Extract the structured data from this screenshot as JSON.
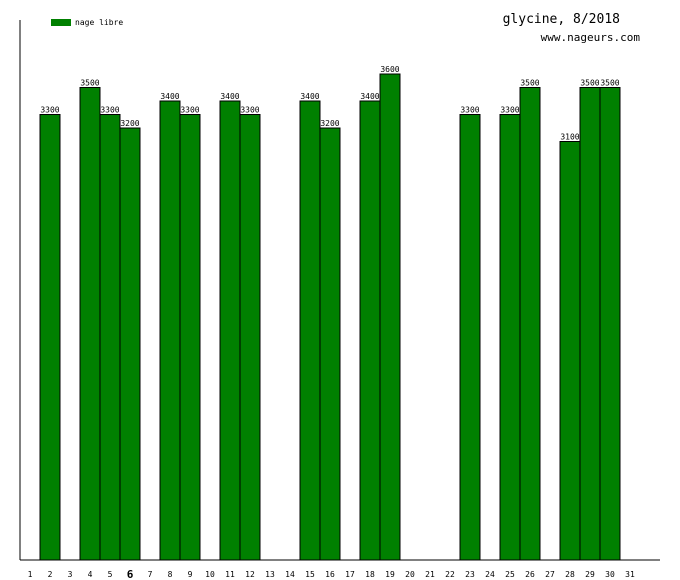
{
  "chart_data": {
    "type": "bar",
    "title": "glycine, 8/2018",
    "subtitle": "www.nageurs.com",
    "legend": {
      "position": "top-left",
      "entries": [
        {
          "name": "nage libre",
          "color": "#008000"
        }
      ]
    },
    "categories": [
      "1",
      "2",
      "3",
      "4",
      "5",
      "6",
      "7",
      "8",
      "9",
      "10",
      "11",
      "12",
      "13",
      "14",
      "15",
      "16",
      "17",
      "18",
      "19",
      "20",
      "21",
      "22",
      "23",
      "24",
      "25",
      "26",
      "27",
      "28",
      "29",
      "30",
      "31"
    ],
    "highlight_category": "6",
    "series": [
      {
        "name": "nage libre",
        "color": "#008000",
        "values": [
          null,
          3300,
          null,
          3500,
          3300,
          3200,
          null,
          3400,
          3300,
          null,
          3400,
          3300,
          null,
          null,
          3400,
          3200,
          null,
          3400,
          3600,
          null,
          null,
          null,
          3300,
          null,
          3300,
          3500,
          null,
          3100,
          3500,
          3500,
          null
        ]
      }
    ],
    "ylim": [
      0,
      4000
    ],
    "grid": false
  }
}
